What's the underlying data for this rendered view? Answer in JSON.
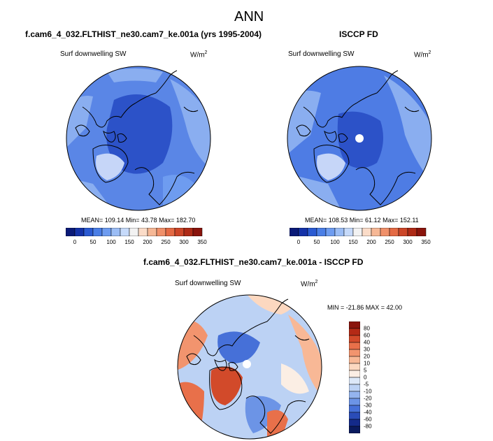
{
  "page": {
    "title": "ANN"
  },
  "panels": [
    {
      "id": "model",
      "header": "f.cam6_4_032.FLTHIST_ne30.cam7_ke.001a (yrs 1995-2004)",
      "variable": "Surf downwelling SW",
      "units_base": "W/m",
      "units_exp": "2",
      "stats": "MEAN= 109.14  Min=  43.78  Max= 182.70",
      "colorbar_ticks": [
        "0",
        "50",
        "100",
        "150",
        "200",
        "250",
        "300",
        "350"
      ]
    },
    {
      "id": "obs",
      "header": "ISCCP FD",
      "variable": "Surf downwelling SW",
      "units_base": "W/m",
      "units_exp": "2",
      "stats": "MEAN= 108.53  Min=  61.12  Max= 152.11",
      "colorbar_ticks": [
        "0",
        "50",
        "100",
        "150",
        "200",
        "250",
        "300",
        "350"
      ]
    }
  ],
  "diff": {
    "header": "f.cam6_4_032.FLTHIST_ne30.cam7_ke.001a - ISCCP FD",
    "variable": "Surf downwelling SW",
    "units_base": "W/m",
    "units_exp": "2",
    "stats": "MIN = -21.86 MAX =  42.00",
    "colorbar_ticks": [
      "80",
      "60",
      "40",
      "30",
      "20",
      "10",
      "5",
      "0",
      "-5",
      "-10",
      "-20",
      "-30",
      "-40",
      "-60",
      "-80"
    ]
  },
  "colors": {
    "abs_scale": [
      "#0a1a78",
      "#1432a8",
      "#2a5ad2",
      "#4a7ee6",
      "#6e9cf0",
      "#9bbdf5",
      "#c6dafa",
      "#f2f2f2",
      "#fbdcc8",
      "#f6b896",
      "#f0906a",
      "#e46a44",
      "#cc4628",
      "#ae2a16",
      "#8a140c"
    ],
    "diff_scale": [
      "#8a140c",
      "#b42a16",
      "#d24a2a",
      "#e8704a",
      "#f2946e",
      "#f8b896",
      "#fcd8c0",
      "#fbeee4",
      "#dce8f8",
      "#bcd2f4",
      "#94b4ee",
      "#6c94e6",
      "#4670d8",
      "#2a4cb8",
      "#142a8a",
      "#0a1a5e"
    ],
    "ocean_model": "#5a86e6",
    "ocean_obs": "#4e7ce4",
    "dark_blue": "#2c52c8",
    "light_blue": "#8aaef0",
    "pale": "#c6d6f8"
  }
}
